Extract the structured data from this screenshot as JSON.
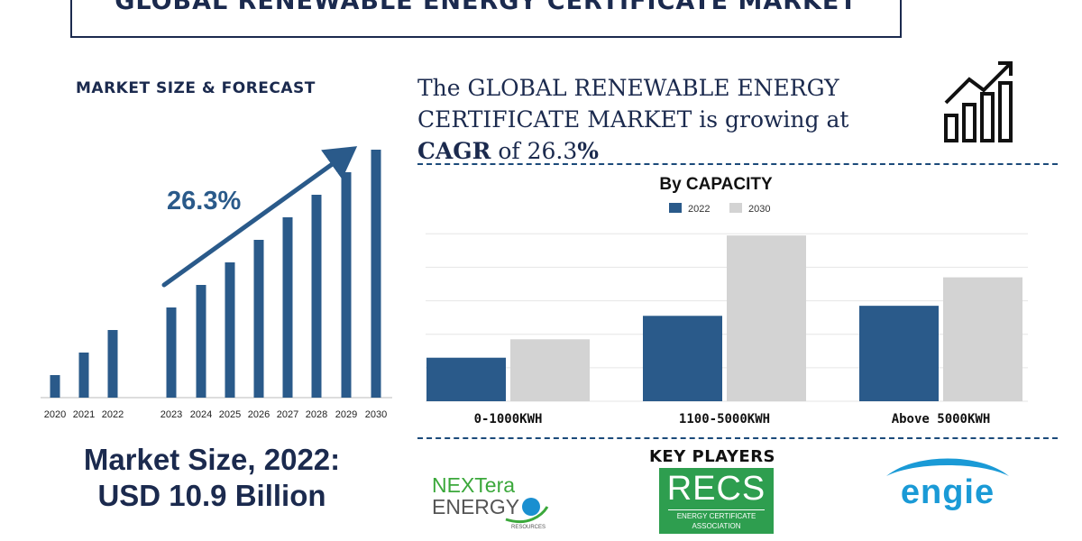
{
  "header": {
    "title": "GLOBAL RENEWABLE ENERGY CERTIFICATE MARKET"
  },
  "left": {
    "subhead": "MARKET SIZE & FORECAST",
    "market_size_line1": "Market Size, 2022:",
    "market_size_line2": "USD 10.9 Billion"
  },
  "right": {
    "headline_line1": "The GLOBAL RENEWABLE ENERGY",
    "headline_line2": "CERTIFICATE MARKET is growing at",
    "headline_cagr_word": "CAGR",
    "headline_of": " of 26.3",
    "headline_pct": "%",
    "key_players": "KEY PLAYERS"
  },
  "logos": {
    "nextera_line1": "NEXTera",
    "nextera_line2": "ENERGY",
    "nextera_sub": "RESOURCES",
    "recs_main": "RECS",
    "recs_sub1": "ENERGY CERTIFICATE",
    "recs_sub2": "ASSOCIATION",
    "engie": "engie",
    "nextera_color": "#3ba83b",
    "recs_color": "#2e9e4f",
    "engie_color": "#1a9ad6"
  },
  "icons": {
    "growth": "bar-chart-growth-icon",
    "trend_arrow": "arrow-up-right-icon"
  },
  "colors": {
    "primary": "#2a5a8a",
    "secondary": "#d3d3d3",
    "navy": "#1b2a4e"
  },
  "chart_data": [
    {
      "type": "bar",
      "title": "MARKET SIZE & FORECAST",
      "categories": [
        "2020",
        "2021",
        "2022",
        "2023",
        "2024",
        "2025",
        "2026",
        "2027",
        "2028",
        "2029",
        "2030"
      ],
      "values": [
        1,
        2,
        3,
        4,
        5,
        6,
        7,
        8,
        9,
        10,
        11
      ],
      "annotation": "26.3%",
      "ylim": [
        0,
        11
      ]
    },
    {
      "type": "bar",
      "title": "By CAPACITY",
      "categories": [
        "0-1000KWH",
        "1100-5000KWH",
        "Above 5000KWH"
      ],
      "series": [
        {
          "name": "2022",
          "values": [
            26,
            51,
            57
          ]
        },
        {
          "name": "2030",
          "values": [
            37,
            99,
            74
          ]
        }
      ],
      "ylim": [
        0,
        105
      ],
      "legend": "top-center",
      "grid": true
    }
  ]
}
